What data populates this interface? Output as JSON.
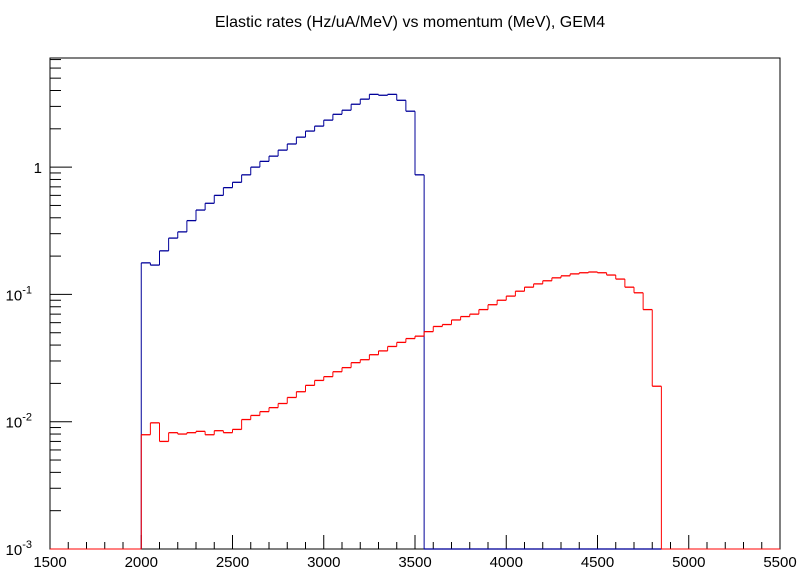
{
  "chart_data": {
    "type": "histogram",
    "title": "Elastic rates (Hz/uA/MeV) vs momentum (MeV), GEM4",
    "bins": [
      2000,
      2050,
      2100,
      2150,
      2200,
      2250,
      2300,
      2350,
      2400,
      2450,
      2500,
      2550,
      2600,
      2650,
      2700,
      2750,
      2800,
      2850,
      2900,
      2950,
      3000,
      3050,
      3100,
      3150,
      3200,
      3250,
      3300,
      3350,
      3400,
      3450,
      3500,
      3550,
      3600,
      3650,
      3700,
      3750,
      3800,
      3850,
      3900,
      3950,
      4000,
      4050,
      4100,
      4150,
      4200,
      4250,
      4300,
      4350,
      4400,
      4450,
      4500,
      4550,
      4600,
      4650,
      4700,
      4750,
      4800,
      4850
    ],
    "series": [
      {
        "name": "blue",
        "color": "#000099",
        "values": [
          0.177,
          0.17,
          0.22,
          0.277,
          0.31,
          0.38,
          0.46,
          0.52,
          0.6,
          0.69,
          0.76,
          0.87,
          1.0,
          1.11,
          1.22,
          1.36,
          1.52,
          1.72,
          1.92,
          2.1,
          2.34,
          2.6,
          2.8,
          3.12,
          3.42,
          3.73,
          3.67,
          3.73,
          3.35,
          2.75,
          0.87,
          0,
          0,
          0,
          0,
          0,
          0,
          0,
          0,
          0,
          0,
          0,
          0,
          0,
          0,
          0,
          0,
          0,
          0,
          0,
          0,
          0,
          0,
          0,
          0,
          0,
          0
        ]
      },
      {
        "name": "red",
        "color": "#ff0000",
        "values": [
          0.0079,
          0.0098,
          0.007,
          0.0082,
          0.008,
          0.0082,
          0.0084,
          0.0079,
          0.0085,
          0.0082,
          0.0087,
          0.0104,
          0.0112,
          0.012,
          0.0129,
          0.0139,
          0.0155,
          0.0172,
          0.0193,
          0.0211,
          0.0226,
          0.0247,
          0.0266,
          0.0291,
          0.0307,
          0.0336,
          0.036,
          0.039,
          0.042,
          0.045,
          0.047,
          0.051,
          0.056,
          0.058,
          0.063,
          0.067,
          0.07,
          0.076,
          0.083,
          0.09,
          0.097,
          0.106,
          0.114,
          0.121,
          0.128,
          0.135,
          0.14,
          0.145,
          0.148,
          0.15,
          0.148,
          0.142,
          0.132,
          0.114,
          0.103,
          0.076,
          0.019
        ]
      }
    ],
    "xlim": [
      1500,
      5500
    ],
    "xticks": [
      1500,
      2000,
      2500,
      3000,
      3500,
      4000,
      4500,
      5000,
      5500
    ],
    "ylim": [
      0.001,
      7.2
    ],
    "log_y": true,
    "yticks": [
      {
        "value": 0.001,
        "label": "10",
        "exponent": "-3"
      },
      {
        "value": 0.01,
        "label": "10",
        "exponent": "-2"
      },
      {
        "value": 0.1,
        "label": "10",
        "exponent": "-1"
      },
      1
    ],
    "grid": false
  }
}
